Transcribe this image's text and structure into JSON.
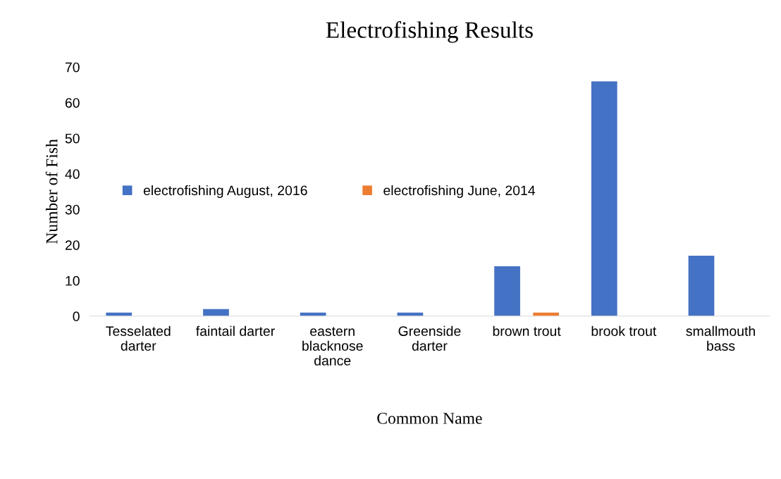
{
  "chart_data": {
    "type": "bar",
    "title": "Electrofishing Results",
    "xlabel": "Common Name",
    "ylabel": "Number of Fish",
    "categories": [
      "Tesselated\ndarter",
      "faintail darter",
      "eastern\nblacknose\ndance",
      "Greenside\ndarter",
      "brown trout",
      "brook trout",
      "smallmouth\nbass"
    ],
    "series": [
      {
        "name": "electrofishing August, 2016",
        "color": "#4472c4",
        "values": [
          1,
          2,
          1,
          1,
          14,
          66,
          17
        ]
      },
      {
        "name": "electrofishing June, 2014",
        "color": "#ed7d31",
        "values": [
          null,
          null,
          null,
          null,
          1,
          null,
          null
        ]
      }
    ],
    "ylim": [
      0,
      70
    ],
    "yticks": [
      0,
      10,
      20,
      30,
      40,
      50,
      60,
      70
    ],
    "grid": false,
    "legend": "center left"
  }
}
